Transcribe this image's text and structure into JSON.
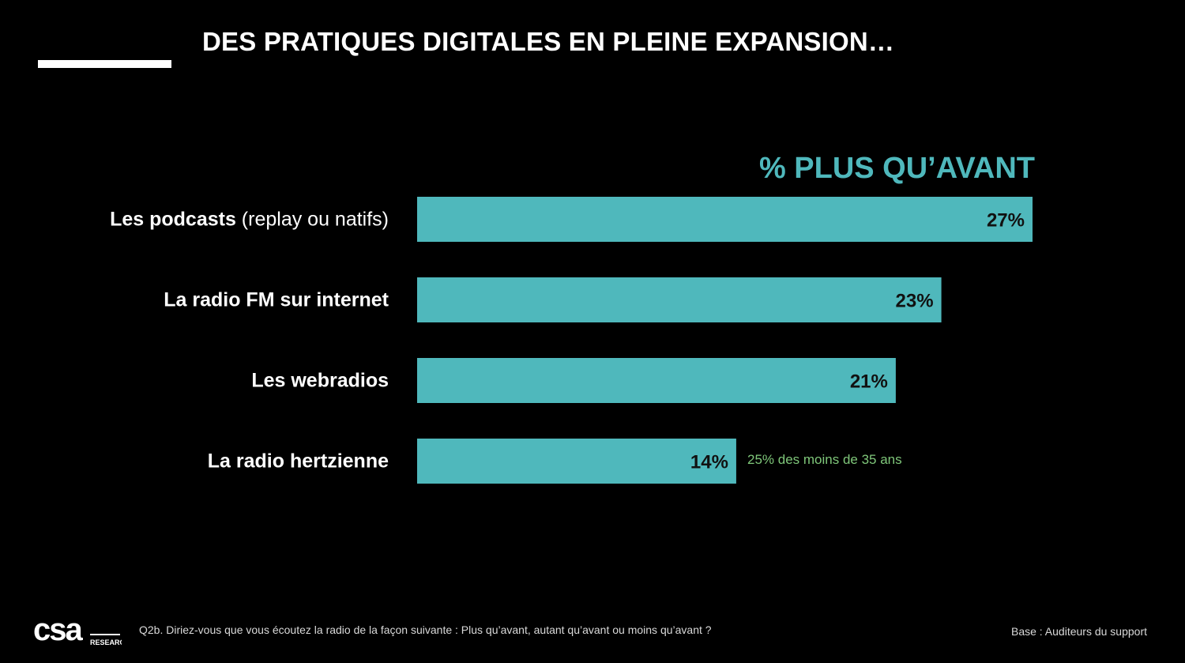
{
  "slide": {
    "title": "DES PRATIQUES DIGITALES EN PLEINE EXPANSION…"
  },
  "chart_data": {
    "type": "bar",
    "orientation": "horizontal",
    "title": "% PLUS QU’AVANT",
    "categories": [
      "Les podcasts (replay ou natifs)",
      "La radio FM sur internet",
      "Les webradios",
      "La radio hertzienne"
    ],
    "category_parts": [
      {
        "strong": "Les podcasts",
        "weak": " (replay ou natifs)"
      },
      {
        "strong": "La radio FM sur internet",
        "weak": ""
      },
      {
        "strong": "Les webradios",
        "weak": ""
      },
      {
        "strong": "La radio hertzienne",
        "weak": ""
      }
    ],
    "values": [
      27,
      23,
      21,
      14
    ],
    "value_labels": [
      "27%",
      "23%",
      "21%",
      "14%"
    ],
    "unit": "%",
    "xlim": [
      0,
      27
    ],
    "bar_color": "#4fb8bc",
    "annotations": [
      {
        "category_index": 3,
        "text": "25% des moins de 35 ans",
        "color": "#7fc77a"
      }
    ]
  },
  "footer": {
    "logo_text": "csa",
    "logo_subtext": "RESEARCH",
    "question": "Q2b. Diriez-vous que vous écoutez la radio de la façon suivante : Plus qu’avant, autant qu’avant ou moins qu’avant ?",
    "base": "Base : Auditeurs du support"
  }
}
